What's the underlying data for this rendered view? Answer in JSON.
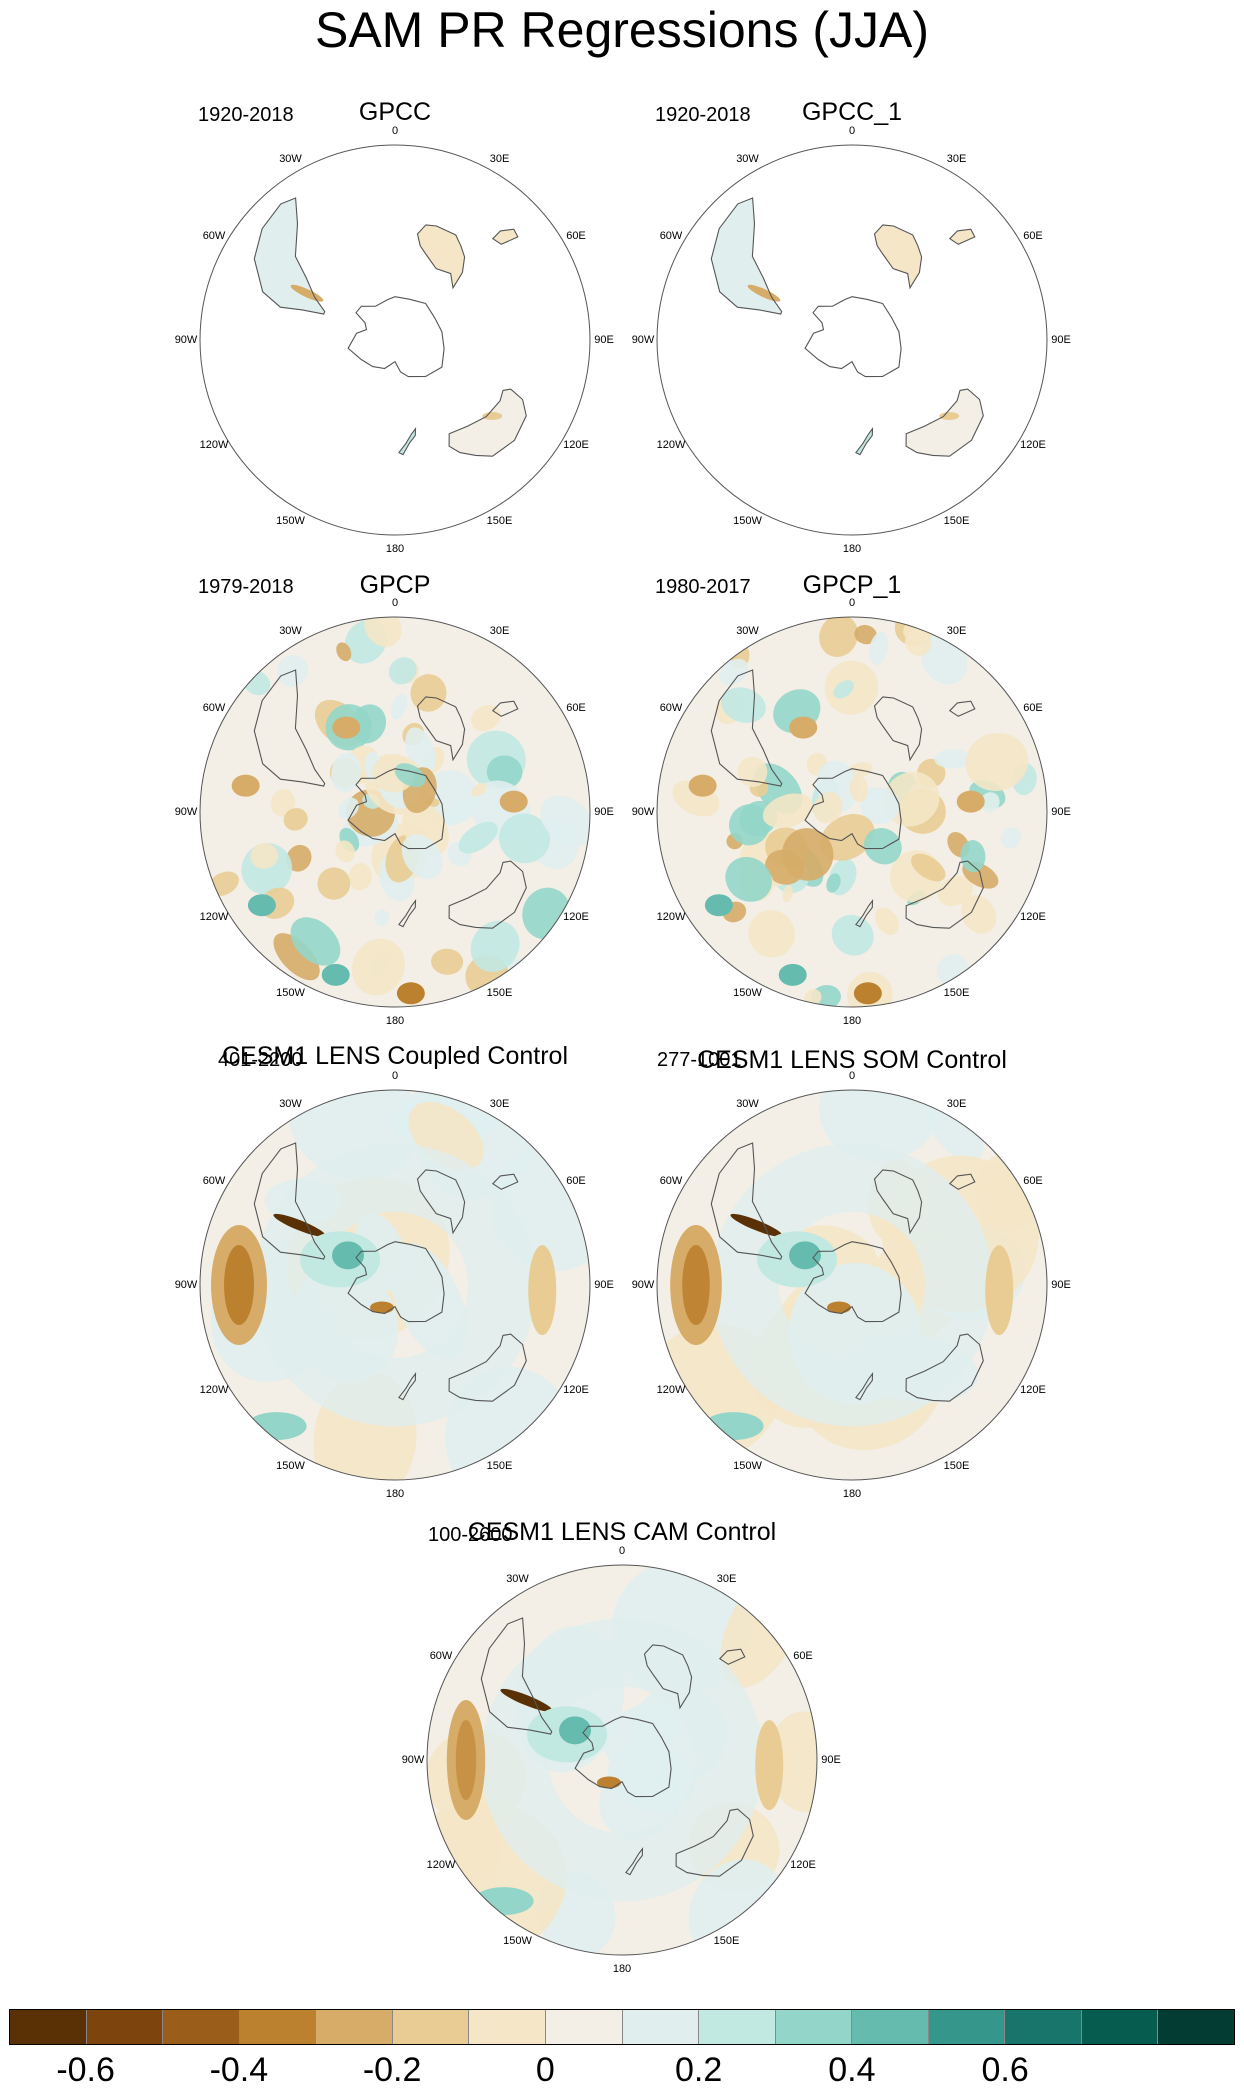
{
  "title": "SAM PR Regressions (JJA)",
  "panels": [
    {
      "id": "gpcc",
      "title": "GPCC",
      "period": "1920-2018",
      "coverage": "land"
    },
    {
      "id": "gpcc1",
      "title": "GPCC_1",
      "period": "1920-2018",
      "coverage": "land"
    },
    {
      "id": "gpcp",
      "title": "GPCP",
      "period": "1979-2018",
      "coverage": "obs"
    },
    {
      "id": "gpcp1",
      "title": "GPCP_1",
      "period": "1980-2017",
      "coverage": "obs"
    },
    {
      "id": "coupled",
      "title": "CESM1 LENS Coupled Control",
      "period": "401-2200",
      "coverage": "model"
    },
    {
      "id": "som",
      "title": "CESM1 LENS SOM Control",
      "period": "277-1001",
      "coverage": "model"
    },
    {
      "id": "cam",
      "title": "CESM1 LENS CAM Control",
      "period": "100-2600",
      "coverage": "model"
    }
  ],
  "longitude_labels": [
    "0",
    "30E",
    "60E",
    "90E",
    "120E",
    "150E",
    "180",
    "150W",
    "120W",
    "90W",
    "60W",
    "30W"
  ],
  "colorbar": {
    "colors": [
      "#5a3005",
      "#7d450d",
      "#9b5e1a",
      "#bc812f",
      "#d6ac68",
      "#e9cc93",
      "#f4e6c6",
      "#f3efe6",
      "#e0eeee",
      "#c2e8e2",
      "#93d6c9",
      "#65bcae",
      "#35968b",
      "#17756b",
      "#075c50",
      "#023c33"
    ],
    "tick_labels": [
      "-0.6",
      "-0.4",
      "-0.2",
      "0",
      "0.2",
      "0.4",
      "0.6"
    ]
  }
}
